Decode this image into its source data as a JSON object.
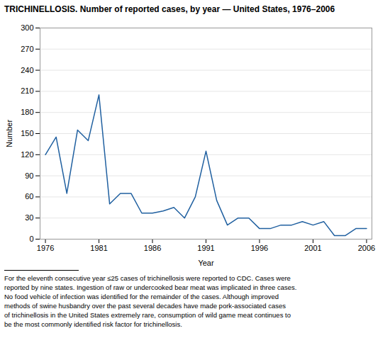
{
  "chart_data": {
    "type": "line",
    "title": "TRICHINELLOSIS. Number of reported cases, by year — United States, 1976–2006",
    "x": [
      1976,
      1977,
      1978,
      1979,
      1980,
      1981,
      1982,
      1983,
      1984,
      1985,
      1986,
      1987,
      1988,
      1989,
      1990,
      1991,
      1992,
      1993,
      1994,
      1995,
      1996,
      1997,
      1998,
      1999,
      2000,
      2001,
      2002,
      2003,
      2004,
      2005,
      2006
    ],
    "values": [
      120,
      145,
      65,
      155,
      140,
      205,
      50,
      65,
      65,
      37,
      37,
      40,
      45,
      30,
      60,
      125,
      55,
      20,
      30,
      30,
      15,
      15,
      20,
      20,
      25,
      20,
      25,
      5,
      5,
      15,
      15
    ],
    "color": "#2060a0",
    "xlabel": "Year",
    "ylabel": "Number",
    "xlim": [
      1975.5,
      2006.5
    ],
    "xticks": [
      1976,
      1981,
      1986,
      1991,
      1996,
      2001,
      2006
    ],
    "ylim": [
      0,
      300
    ],
    "yticks": [
      0,
      30,
      60,
      90,
      120,
      150,
      180,
      210,
      240,
      270,
      300
    ],
    "grid": "y",
    "footnote": [
      "For the eleventh consecutive year ≤25 cases of trichinellosis were reported to CDC. Cases were",
      "reported by nine states. Ingestion of raw or undercooked bear meat was implicated in three cases.",
      "No food vehicle of infection was identified for the remainder of the cases. Although improved",
      "methods of swine husbandry over the past several decades have made pork-associated cases",
      "of trichinellosis in the United States extremely rare, consumption of wild game meat continues to",
      "be the most commonly identified risk factor for trichinellosis."
    ]
  }
}
